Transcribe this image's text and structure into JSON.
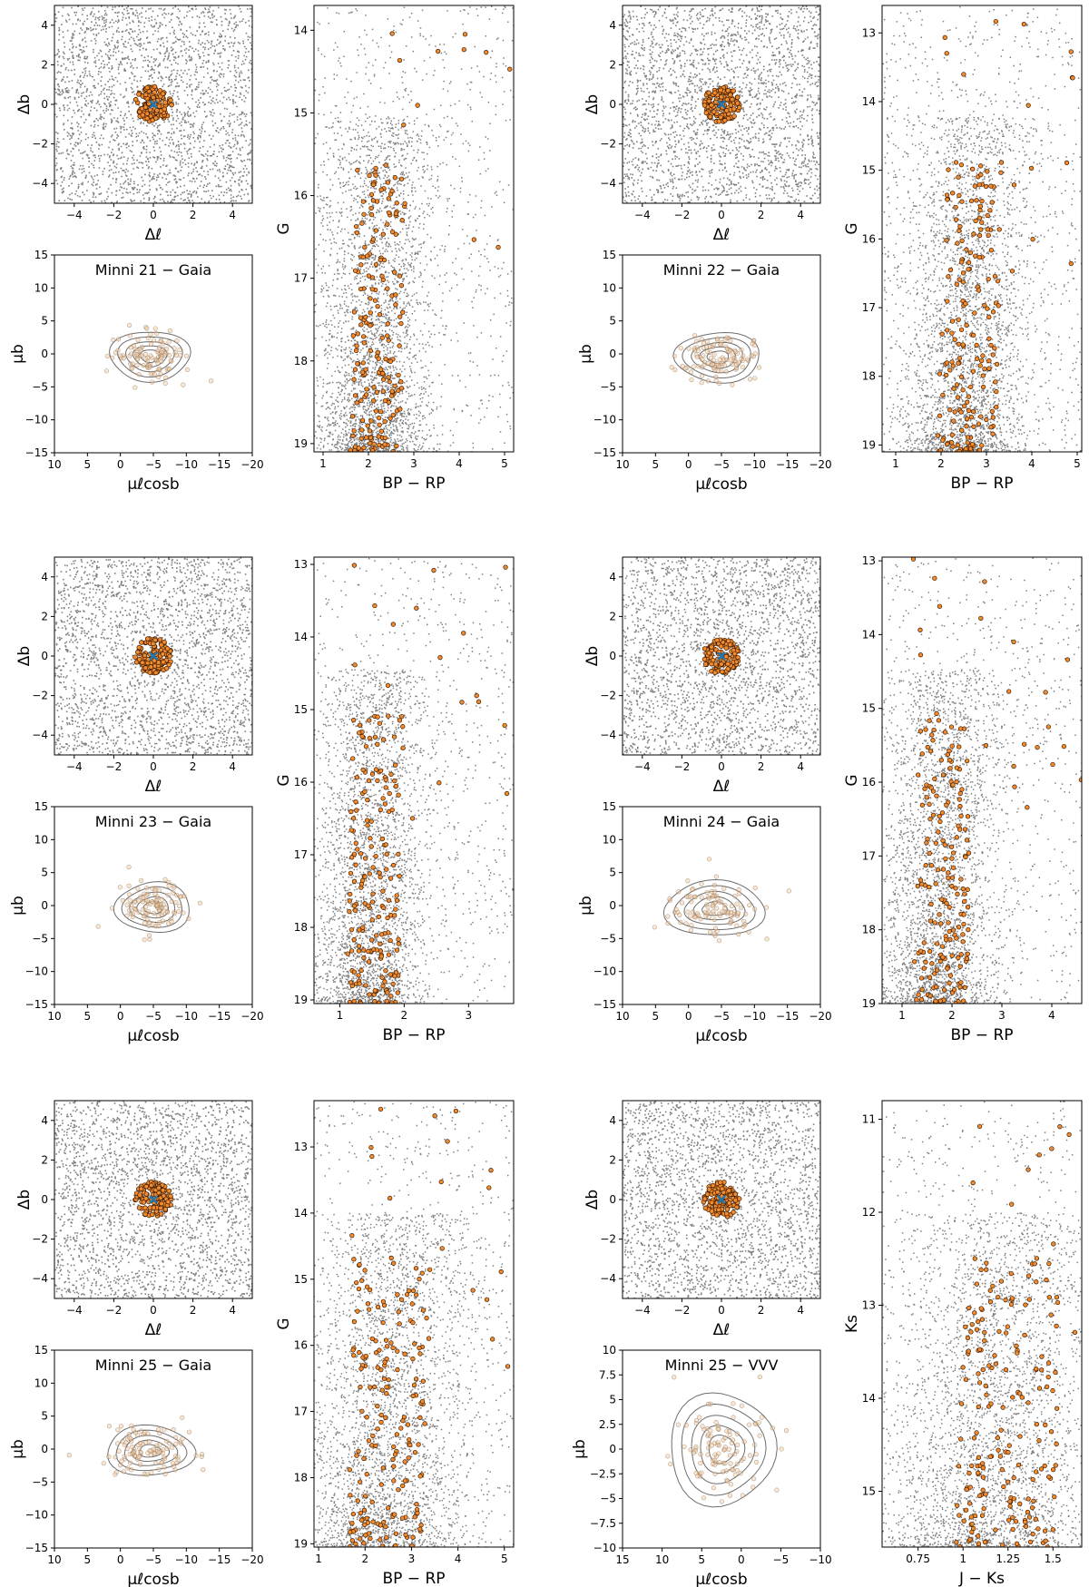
{
  "colors": {
    "field_stars": "#808080",
    "members": "#f28a2e",
    "member_edge": "#3a1a00",
    "center_marker": "#1f77b4",
    "contours": "#6e6e6e"
  },
  "chart_data": [
    {
      "cluster": "Minni 21",
      "survey": "Gaia",
      "title": "Minni 21 − Gaia",
      "sky": {
        "type": "scatter",
        "xlabel": "Δℓ",
        "ylabel": "Δb",
        "xlim": [
          -5,
          5
        ],
        "ylim": [
          -5,
          5
        ],
        "xticks": [
          -4,
          -2,
          0,
          2,
          4
        ],
        "yticks": [
          -4,
          -2,
          0,
          2,
          4
        ],
        "member_radius": 1.0,
        "center": [
          0,
          0
        ]
      },
      "pm": {
        "type": "scatter",
        "xlabel": "μℓcosb",
        "ylabel": "μb",
        "xlim": [
          10,
          -20
        ],
        "ylim": [
          -15,
          15
        ],
        "xticks": [
          10,
          5,
          0,
          -5,
          -10,
          -15,
          -20
        ],
        "yticks": [
          -15,
          -10,
          -5,
          0,
          5,
          10,
          15
        ],
        "center": [
          -4.5,
          -0.3
        ],
        "spread": [
          3.2,
          2.0
        ]
      },
      "cmd": {
        "type": "scatter",
        "xlabel": "BP − RP",
        "ylabel": "G",
        "xlim": [
          0.8,
          5.2
        ],
        "ylim": [
          19.1,
          13.7
        ],
        "xticks": [
          1,
          2,
          3,
          4,
          5
        ],
        "yticks": [
          14,
          15,
          16,
          17,
          18,
          19
        ],
        "members_color_range": [
          1.6,
          2.7
        ]
      }
    },
    {
      "cluster": "Minni 22",
      "survey": "Gaia",
      "title": "Minni 22 − Gaia",
      "sky": {
        "type": "scatter",
        "xlabel": "Δℓ",
        "ylabel": "Δb",
        "xlim": [
          -5,
          5
        ],
        "ylim": [
          -5,
          5
        ],
        "xticks": [
          -4,
          -2,
          0,
          2,
          4
        ],
        "yticks": [
          -4,
          -2,
          0,
          2,
          4
        ],
        "member_radius": 1.0,
        "center": [
          0,
          0
        ]
      },
      "pm": {
        "type": "scatter",
        "xlabel": "μℓcosb",
        "ylabel": "μb",
        "xlim": [
          10,
          -20
        ],
        "ylim": [
          -15,
          15
        ],
        "xticks": [
          10,
          5,
          0,
          -5,
          -10,
          -15,
          -20
        ],
        "yticks": [
          -15,
          -10,
          -5,
          0,
          5,
          10,
          15
        ],
        "center": [
          -4.5,
          -0.5
        ],
        "spread": [
          3.4,
          2.0
        ]
      },
      "cmd": {
        "type": "scatter",
        "xlabel": "BP − RP",
        "ylabel": "G",
        "xlim": [
          0.7,
          5.1
        ],
        "ylim": [
          19.1,
          12.6
        ],
        "xticks": [
          1,
          2,
          3,
          4,
          5
        ],
        "yticks": [
          13,
          14,
          15,
          16,
          17,
          18,
          19
        ],
        "members_color_range": [
          1.9,
          3.2
        ]
      }
    },
    {
      "cluster": "Minni 23",
      "survey": "Gaia",
      "title": "Minni 23 − Gaia",
      "sky": {
        "type": "scatter",
        "xlabel": "Δℓ",
        "ylabel": "Δb",
        "xlim": [
          -5,
          5
        ],
        "ylim": [
          -5,
          5
        ],
        "xticks": [
          -4,
          -2,
          0,
          2,
          4
        ],
        "yticks": [
          -4,
          -2,
          0,
          2,
          4
        ],
        "member_radius": 1.0,
        "center": [
          0,
          0
        ]
      },
      "pm": {
        "type": "scatter",
        "xlabel": "μℓcosb",
        "ylabel": "μb",
        "xlim": [
          10,
          -20
        ],
        "ylim": [
          -15,
          15
        ],
        "xticks": [
          10,
          5,
          0,
          -5,
          -10,
          -15,
          -20
        ],
        "yticks": [
          -15,
          -10,
          -5,
          0,
          5,
          10,
          15
        ],
        "center": [
          -5.0,
          -0.3
        ],
        "spread": [
          3.0,
          2.0
        ]
      },
      "cmd": {
        "type": "scatter",
        "xlabel": "BP − RP",
        "ylabel": "G",
        "xlim": [
          0.6,
          3.7
        ],
        "ylim": [
          19.05,
          12.9
        ],
        "xticks": [
          1,
          2,
          3
        ],
        "yticks": [
          13,
          14,
          15,
          16,
          17,
          18,
          19
        ],
        "members_color_range": [
          1.1,
          1.9
        ]
      }
    },
    {
      "cluster": "Minni 24",
      "survey": "Gaia",
      "title": "Minni 24 − Gaia",
      "sky": {
        "type": "scatter",
        "xlabel": "Δℓ",
        "ylabel": "Δb",
        "xlim": [
          -5,
          5
        ],
        "ylim": [
          -5,
          5
        ],
        "xticks": [
          -4,
          -2,
          0,
          2,
          4
        ],
        "yticks": [
          -4,
          -2,
          0,
          2,
          4
        ],
        "member_radius": 1.0,
        "center": [
          0,
          0
        ]
      },
      "pm": {
        "type": "scatter",
        "xlabel": "μℓcosb",
        "ylabel": "μb",
        "xlim": [
          10,
          -20
        ],
        "ylim": [
          -15,
          15
        ],
        "xticks": [
          10,
          5,
          0,
          -5,
          -10,
          -15,
          -20
        ],
        "yticks": [
          -15,
          -10,
          -5,
          0,
          5,
          10,
          15
        ],
        "center": [
          -4.0,
          -0.5
        ],
        "spread": [
          4.0,
          2.2
        ]
      },
      "cmd": {
        "type": "scatter",
        "xlabel": "BP − RP",
        "ylabel": "G",
        "xlim": [
          0.6,
          4.6
        ],
        "ylim": [
          19.0,
          12.95
        ],
        "xticks": [
          1,
          2,
          3,
          4
        ],
        "yticks": [
          13,
          14,
          15,
          16,
          17,
          18,
          19
        ],
        "members_color_range": [
          1.2,
          2.3
        ]
      }
    },
    {
      "cluster": "Minni 25",
      "survey": "Gaia",
      "title": "Minni 25 − Gaia",
      "sky": {
        "type": "scatter",
        "xlabel": "Δℓ",
        "ylabel": "Δb",
        "xlim": [
          -5,
          5
        ],
        "ylim": [
          -5,
          5
        ],
        "xticks": [
          -4,
          -2,
          0,
          2,
          4
        ],
        "yticks": [
          -4,
          -2,
          0,
          2,
          4
        ],
        "member_radius": 1.0,
        "center": [
          0,
          0
        ]
      },
      "pm": {
        "type": "scatter",
        "xlabel": "μℓcosb",
        "ylabel": "μb",
        "xlim": [
          10,
          -20
        ],
        "ylim": [
          -15,
          15
        ],
        "xticks": [
          10,
          5,
          0,
          -5,
          -10,
          -15,
          -20
        ],
        "yticks": [
          -15,
          -10,
          -5,
          0,
          5,
          10,
          15
        ],
        "center": [
          -4.5,
          -0.3
        ],
        "spread": [
          3.5,
          2.0
        ]
      },
      "cmd": {
        "type": "scatter",
        "xlabel": "BP − RP",
        "ylabel": "G",
        "xlim": [
          0.9,
          5.2
        ],
        "ylim": [
          19.05,
          12.3
        ],
        "xticks": [
          1,
          2,
          3,
          4,
          5
        ],
        "yticks": [
          13,
          14,
          15,
          16,
          17,
          18,
          19
        ],
        "members_color_range": [
          1.6,
          3.2
        ]
      }
    },
    {
      "cluster": "Minni 25",
      "survey": "VVV",
      "title": "Minni 25 − VVV",
      "sky": {
        "type": "scatter",
        "xlabel": "Δℓ",
        "ylabel": "Δb",
        "xlim": [
          -5,
          5
        ],
        "ylim": [
          -5,
          5
        ],
        "xticks": [
          -4,
          -2,
          0,
          2,
          4
        ],
        "yticks": [
          -4,
          -2,
          0,
          2,
          4
        ],
        "member_radius": 1.0,
        "center": [
          0,
          0
        ]
      },
      "pm": {
        "type": "scatter",
        "xlabel": "μℓcosb",
        "ylabel": "μb",
        "xlim": [
          15,
          -10
        ],
        "ylim": [
          -10,
          10
        ],
        "xticks": [
          15,
          10,
          5,
          0,
          -5,
          -10
        ],
        "yticks": [
          -10.0,
          -7.5,
          -5.0,
          -2.5,
          0.0,
          2.5,
          5.0,
          7.5,
          10.0
        ],
        "center": [
          2.5,
          0.0
        ],
        "spread": [
          3.5,
          3.0
        ]
      },
      "cmd": {
        "type": "scatter",
        "xlabel": "J − Ks",
        "ylabel": "Ks",
        "xlim": [
          0.55,
          1.66
        ],
        "ylim": [
          15.6,
          10.8
        ],
        "xticks": [
          0.75,
          1.0,
          1.25,
          1.5
        ],
        "yticks": [
          11,
          12,
          13,
          14,
          15
        ],
        "members_color_range": [
          0.95,
          1.5
        ]
      }
    }
  ]
}
